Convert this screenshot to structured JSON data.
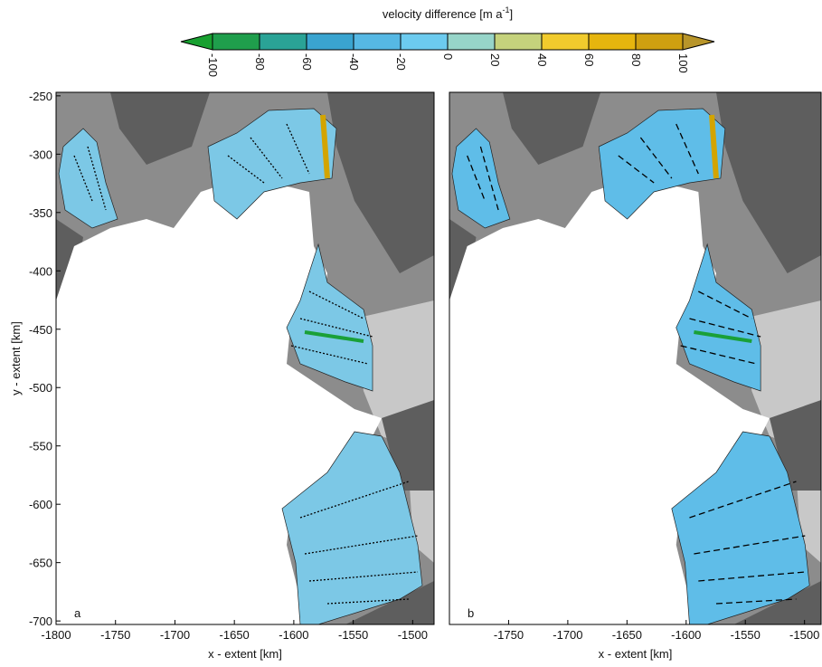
{
  "colorbar": {
    "label": "velocity difference [m a",
    "label_sup": "-1",
    "label_end": "]",
    "lim": [
      -100,
      100
    ],
    "ticks": [
      -100,
      -80,
      -60,
      -40,
      -20,
      0,
      20,
      40,
      60,
      80,
      100
    ],
    "colors": [
      "#1f9e4c",
      "#2aa396",
      "#3aa4d0",
      "#56b8e4",
      "#6ccbef",
      "#97d5c9",
      "#c5d27c",
      "#f1cb2d",
      "#e6b50e",
      "#cfa010"
    ],
    "extend_colors": [
      "#18a030",
      "#b8952a"
    ]
  },
  "panels": [
    {
      "label": "a",
      "xlim": [
        -1800,
        -1482
      ],
      "ylim": [
        -703,
        -247
      ],
      "xticks": [
        -1800,
        -1750,
        -1700,
        -1650,
        -1600,
        -1550,
        -1500
      ],
      "yticks": [
        -250,
        -300,
        -350,
        -400,
        -450,
        -500,
        -550,
        -600,
        -650,
        -700
      ],
      "xlabel": "x - extent [km]",
      "ylabel": "y - extent [km]"
    },
    {
      "label": "b",
      "xlim": [
        -1800,
        -1486
      ],
      "ylim": [
        -703,
        -247
      ],
      "xticks": [
        -1750,
        -1700,
        -1650,
        -1600,
        -1550,
        -1500
      ],
      "xlabel": "x - extent [km]"
    }
  ]
}
